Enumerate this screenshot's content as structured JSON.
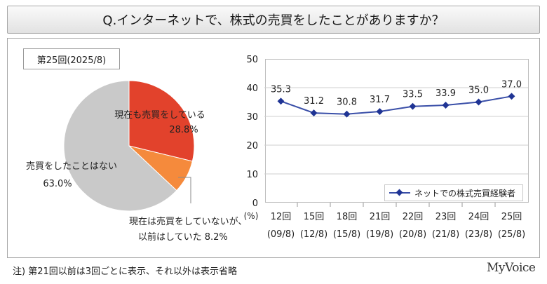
{
  "title": "Q.インターネットで、株式の売買をしたことがありますか？",
  "round_label": "第25回(2025/8)",
  "footnote": "注) 第21回以前は3回ごとに表示、それ以外は表示省略",
  "logo": "MyVoice",
  "colors": {
    "slice_trading": "#e2422c",
    "slice_not_now": "#f58a3c",
    "slice_never": "#c9c9c9",
    "line": "#3a4fa8",
    "marker": "#1f3494",
    "grid": "#cfcfcf"
  },
  "chart_data": [
    {
      "type": "pie",
      "slices": [
        {
          "label": "現在も売買をしている",
          "value": 28.8,
          "value_label": "28.8%"
        },
        {
          "label": "現在は売買をしていないが、以前はしていた",
          "value": 8.2,
          "value_label": "8.2%"
        },
        {
          "label": "売買をしたことはない",
          "value": 63.0,
          "value_label": "63.0%"
        }
      ]
    },
    {
      "type": "line",
      "categories": [
        "12回",
        "15回",
        "18回",
        "21回",
        "22回",
        "23回",
        "24回",
        "25回"
      ],
      "category_dates": [
        "(09/8)",
        "(12/8)",
        "(15/8)",
        "(19/8)",
        "(20/8)",
        "(21/8)",
        "(23/8)",
        "(25/8)"
      ],
      "series": [
        {
          "name": "ネットでの株式売買経験者",
          "values": [
            35.3,
            31.2,
            30.8,
            31.7,
            33.5,
            33.9,
            35.0,
            37.0
          ]
        }
      ],
      "value_labels": [
        "35.3",
        "31.2",
        "30.8",
        "31.7",
        "33.5",
        "33.9",
        "35.0",
        "37.0"
      ],
      "ylim": [
        0,
        50
      ],
      "yticks": [
        "0",
        "10",
        "20",
        "30",
        "40",
        "50"
      ],
      "ylabel": "(%)",
      "grid": true,
      "legend": "bottom-right"
    }
  ]
}
